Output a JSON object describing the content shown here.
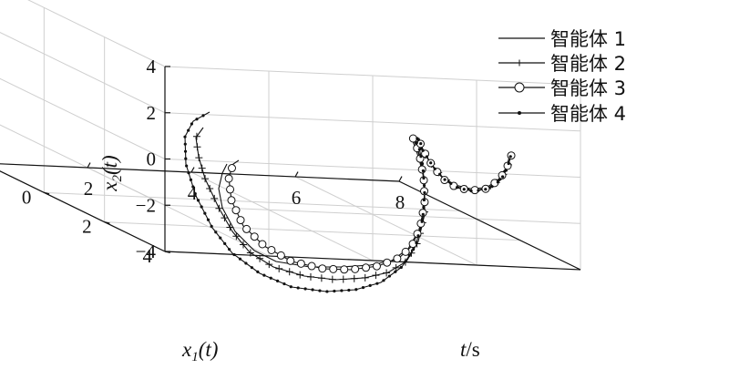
{
  "chart_data": {
    "type": "line",
    "projection": "3d",
    "x_axis": {
      "label_main": "t",
      "label_unit": "/s",
      "ticks": [
        "0",
        "2",
        "4",
        "6",
        "8"
      ],
      "range": [
        0,
        8
      ]
    },
    "y_axis": {
      "label_main": "x",
      "label_sub": "1",
      "label_tail": "(t)",
      "ticks": [
        "4",
        "2",
        "0",
        "−2"
      ],
      "range": [
        -2,
        4
      ]
    },
    "z_axis": {
      "label_main": "x",
      "label_sub": "2",
      "label_tail": "(t)",
      "ticks": [
        "4",
        "2",
        "0",
        "−2",
        "−4"
      ],
      "range": [
        -4,
        4
      ]
    },
    "grid": true,
    "legend": {
      "placement": "top-right"
    },
    "series": [
      {
        "name": "智能体 1",
        "marker": "none"
      },
      {
        "name": "智能体 2",
        "marker": "plus"
      },
      {
        "name": "智能体 3",
        "marker": "circle"
      },
      {
        "name": "智能体 4",
        "marker": "dot"
      }
    ]
  }
}
